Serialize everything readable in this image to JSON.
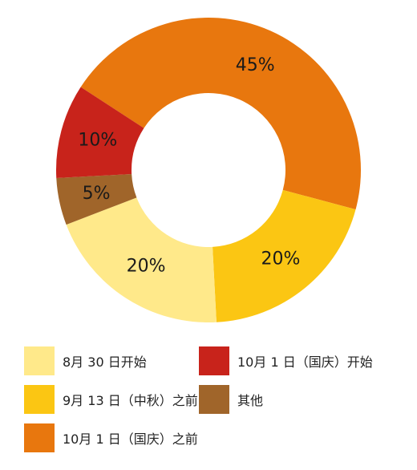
{
  "chart_data": {
    "type": "pie",
    "donut": true,
    "title": "",
    "unit": "%",
    "slices": [
      {
        "label": "10月 1 日（国庆）之前",
        "value": 45,
        "display": "45%",
        "color": "#E8770E"
      },
      {
        "label": "9月 13 日（中秋）之前",
        "value": 20,
        "display": "20%",
        "color": "#FBC613"
      },
      {
        "label": "8月 30 日开始",
        "value": 20,
        "display": "20%",
        "color": "#FFE98A"
      },
      {
        "label": "其他",
        "value": 5,
        "display": "5%",
        "color": "#A0652A"
      },
      {
        "label": "10月 1 日（国庆）开始",
        "value": 10,
        "display": "10%",
        "color": "#C8231B"
      }
    ],
    "legend": {
      "placement": "bottom",
      "items": [
        {
          "label": "8月 30 日开始",
          "color": "#FFE98A"
        },
        {
          "label": "10月 1 日（国庆）开始",
          "color": "#C8231B"
        },
        {
          "label": "9月 13 日（中秋）之前",
          "color": "#FBC613"
        },
        {
          "label": "其他",
          "color": "#A0652A"
        },
        {
          "label": "10月 1 日（国庆）之前",
          "color": "#E8770E"
        }
      ]
    }
  }
}
